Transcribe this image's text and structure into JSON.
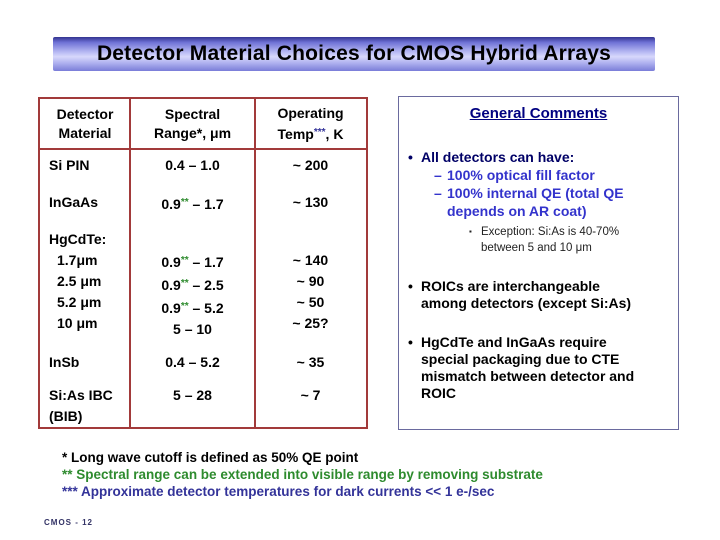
{
  "slide": {
    "title": "Detector Material Choices for CMOS Hybrid Arrays",
    "page_label": "CMOS - 12"
  },
  "colors": {
    "table_border": "#a23a3a",
    "comments_border": "#6a6a9e",
    "footnote_green": "#2e8b2e",
    "footnote_navy": "#333399",
    "sub_bullet_blue": "#3333cc",
    "comments_title_navy": "#000080"
  },
  "table": {
    "headers": {
      "col1": [
        "Detector",
        "Material"
      ],
      "col2": {
        "line1": "Spectral",
        "line2": "Range*, μm"
      },
      "col3": {
        "line1": "Operating",
        "pre": "Temp",
        "sup": "***",
        "post": ", K"
      }
    },
    "rows": [
      {
        "material": [
          {
            "text": "Si PIN"
          }
        ],
        "spectral": [
          {
            "pre": "0.4 – 1.0"
          }
        ],
        "temp": [
          "~ 200"
        ]
      },
      {
        "material": [
          {
            "text": "InGaAs"
          }
        ],
        "spectral": [
          {
            "pre": "0.9",
            "sup": "**",
            "post": " – 1.7"
          }
        ],
        "temp": [
          "~ 130"
        ]
      },
      {
        "material": [
          {
            "text": "HgCdTe:"
          },
          {
            "text": "1.7μm",
            "indent": true
          },
          {
            "text": "2.5 μm",
            "indent": true
          },
          {
            "text": "5.2 μm",
            "indent": true
          },
          {
            "text": "10 μm",
            "indent": true
          }
        ],
        "spectral": [
          {
            "pre": ""
          },
          {
            "pre": "0.9",
            "sup": "**",
            "post": " – 1.7"
          },
          {
            "pre": "0.9",
            "sup": "**",
            "post": " – 2.5"
          },
          {
            "pre": "0.9",
            "sup": "**",
            "post": " – 5.2"
          },
          {
            "pre": "5 – 10"
          }
        ],
        "temp": [
          "",
          "~ 140",
          "~ 90",
          "~ 50",
          "~ 25?"
        ]
      },
      {
        "material": [
          {
            "text": "InSb"
          }
        ],
        "spectral": [
          {
            "pre": "0.4 – 5.2"
          }
        ],
        "temp": [
          "~ 35"
        ]
      },
      {
        "material": [
          {
            "text": "Si:As IBC"
          },
          {
            "text": "(BIB)"
          }
        ],
        "spectral": [
          {
            "pre": "5 – 28"
          }
        ],
        "temp": [
          "~ 7"
        ]
      }
    ]
  },
  "comments": {
    "title": "General Comments",
    "items": [
      {
        "level": 1,
        "marker": "•",
        "style": "navy-bold",
        "gap": "title",
        "lines": [
          "All detectors can have:"
        ]
      },
      {
        "level": 2,
        "marker": "–",
        "style": "blue-bold",
        "lines": [
          "100% optical fill factor"
        ]
      },
      {
        "level": 2,
        "marker": "–",
        "style": "blue-bold",
        "lines": [
          "100% internal QE (total QE",
          "depends on AR coat)"
        ]
      },
      {
        "level": 3,
        "marker": "▪",
        "style": "small-black",
        "gap": "small",
        "lines": [
          "Exception:  Si:As is 40-70%",
          "between 5 and 10 μm"
        ]
      },
      {
        "level": 1,
        "marker": "•",
        "style": "black-bold",
        "gap": "large",
        "lines": [
          "ROICs are interchangeable",
          "among detectors (except Si:As)"
        ]
      },
      {
        "level": 1,
        "marker": "•",
        "style": "black-bold",
        "gap": "large",
        "lines": [
          "HgCdTe and InGaAs require",
          "special packaging due to CTE",
          "mismatch between detector and",
          "ROIC"
        ]
      }
    ]
  },
  "footnotes": [
    {
      "text": "* Long wave cutoff is defined as 50% QE point",
      "style": "black"
    },
    {
      "text": "** Spectral range can be extended into visible range by removing substrate",
      "style": "green"
    },
    {
      "text": "*** Approximate detector temperatures for dark currents << 1 e-/sec",
      "style": "navy"
    }
  ]
}
